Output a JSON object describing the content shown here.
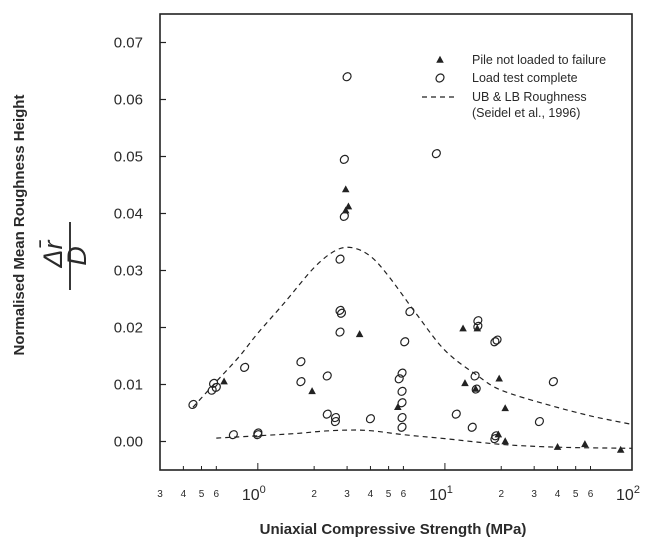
{
  "chart_data": {
    "type": "scatter",
    "title": "",
    "xlabel": "Uniaxial Compressive Strength (MPa)",
    "ylabel": "Normalised Mean Roughness Height",
    "ylabel_fraction": {
      "numerator": "Δr̄",
      "denominator": "D"
    },
    "x_scale": "log",
    "xlim": [
      0.3,
      100
    ],
    "ylim": [
      -0.005,
      0.075
    ],
    "y_ticks": [
      {
        "value": 0.0,
        "label": "0.00"
      },
      {
        "value": 0.01,
        "label": "0.01"
      },
      {
        "value": 0.02,
        "label": "0.02"
      },
      {
        "value": 0.03,
        "label": "0.03"
      },
      {
        "value": 0.04,
        "label": "0.04"
      },
      {
        "value": 0.05,
        "label": "0.05"
      },
      {
        "value": 0.06,
        "label": "0.06"
      },
      {
        "value": 0.07,
        "label": "0.07"
      }
    ],
    "x_ticks": [
      {
        "value": 0.3,
        "label": "3",
        "major": false
      },
      {
        "value": 0.4,
        "label": "4",
        "major": false
      },
      {
        "value": 0.5,
        "label": "5",
        "major": false
      },
      {
        "value": 0.6,
        "label": "6",
        "major": false
      },
      {
        "value": 1,
        "label": "10",
        "exp": "0",
        "major": true
      },
      {
        "value": 2,
        "label": "2",
        "major": false
      },
      {
        "value": 3,
        "label": "3",
        "major": false
      },
      {
        "value": 4,
        "label": "4",
        "major": false
      },
      {
        "value": 5,
        "label": "5",
        "major": false
      },
      {
        "value": 6,
        "label": "6",
        "major": false
      },
      {
        "value": 10,
        "label": "10",
        "exp": "1",
        "major": true
      },
      {
        "value": 20,
        "label": "2",
        "major": false
      },
      {
        "value": 30,
        "label": "3",
        "major": false
      },
      {
        "value": 40,
        "label": "4",
        "major": false
      },
      {
        "value": 50,
        "label": "5",
        "major": false
      },
      {
        "value": 60,
        "label": "6",
        "major": false
      },
      {
        "value": 100,
        "label": "10",
        "exp": "2",
        "major": true
      }
    ],
    "grid": false,
    "legend_position": "top-right",
    "series": [
      {
        "name": "Pile not loaded to failure",
        "marker": "triangle",
        "points": [
          [
            0.66,
            0.0105
          ],
          [
            1.95,
            0.0088
          ],
          [
            2.95,
            0.0442
          ],
          [
            2.95,
            0.0405
          ],
          [
            3.05,
            0.0412
          ],
          [
            3.5,
            0.0188
          ],
          [
            5.6,
            0.006
          ],
          [
            12.5,
            0.0198
          ],
          [
            12.8,
            0.0102
          ],
          [
            14.6,
            0.0092
          ],
          [
            14.9,
            0.0198
          ],
          [
            19.5,
            0.011
          ],
          [
            19.3,
            0.0012
          ],
          [
            21.0,
            0.0058
          ],
          [
            21.0,
            0.0
          ],
          [
            40.0,
            -0.001
          ],
          [
            56.0,
            -0.0005
          ],
          [
            87.0,
            -0.0015
          ]
        ]
      },
      {
        "name": "Load test complete",
        "marker": "circle",
        "points": [
          [
            0.45,
            0.0065
          ],
          [
            0.57,
            0.009
          ],
          [
            0.58,
            0.0102
          ],
          [
            0.6,
            0.0095
          ],
          [
            0.74,
            0.0012
          ],
          [
            0.85,
            0.013
          ],
          [
            1.0,
            0.0015
          ],
          [
            1.0,
            0.0012
          ],
          [
            1.7,
            0.014
          ],
          [
            1.7,
            0.0105
          ],
          [
            2.35,
            0.0115
          ],
          [
            2.35,
            0.0048
          ],
          [
            2.6,
            0.0035
          ],
          [
            2.6,
            0.0042
          ],
          [
            2.75,
            0.032
          ],
          [
            2.75,
            0.023
          ],
          [
            2.75,
            0.0192
          ],
          [
            2.8,
            0.0225
          ],
          [
            2.9,
            0.0395
          ],
          [
            2.9,
            0.0495
          ],
          [
            3.0,
            0.064
          ],
          [
            4.0,
            0.004
          ],
          [
            5.7,
            0.011
          ],
          [
            5.9,
            0.012
          ],
          [
            5.9,
            0.0088
          ],
          [
            5.9,
            0.0068
          ],
          [
            5.9,
            0.0042
          ],
          [
            5.9,
            0.0025
          ],
          [
            6.1,
            0.0175
          ],
          [
            6.5,
            0.0228
          ],
          [
            9.0,
            0.0505
          ],
          [
            11.5,
            0.0048
          ],
          [
            14.0,
            0.0025
          ],
          [
            14.5,
            0.0115
          ],
          [
            14.7,
            0.0092
          ],
          [
            15.0,
            0.0212
          ],
          [
            15.0,
            0.0202
          ],
          [
            18.5,
            0.0175
          ],
          [
            18.5,
            0.0005
          ],
          [
            18.7,
            0.001
          ],
          [
            19.0,
            0.0178
          ],
          [
            32.0,
            0.0035
          ],
          [
            38.0,
            0.0105
          ]
        ]
      }
    ],
    "lines": [
      {
        "name": "UB & LB Roughness",
        "name_line2": "(Seidel et al., 1996)",
        "style": "dashed",
        "upper": [
          [
            0.45,
            0.006
          ],
          [
            0.6,
            0.0105
          ],
          [
            0.8,
            0.015
          ],
          [
            1.0,
            0.019
          ],
          [
            1.4,
            0.0245
          ],
          [
            2.0,
            0.0305
          ],
          [
            2.6,
            0.0335
          ],
          [
            3.2,
            0.034
          ],
          [
            4.0,
            0.0325
          ],
          [
            5.0,
            0.029
          ],
          [
            7.0,
            0.0225
          ],
          [
            10.0,
            0.016
          ],
          [
            15.0,
            0.0115
          ],
          [
            20.0,
            0.009
          ],
          [
            35.0,
            0.0065
          ],
          [
            60.0,
            0.0045
          ],
          [
            100.0,
            0.003
          ]
        ],
        "lower": [
          [
            0.6,
            0.0006
          ],
          [
            1.0,
            0.001
          ],
          [
            1.6,
            0.0014
          ],
          [
            2.2,
            0.0018
          ],
          [
            3.0,
            0.002
          ],
          [
            4.0,
            0.0019
          ],
          [
            6.0,
            0.0012
          ],
          [
            10.0,
            0.0005
          ],
          [
            20.0,
            -0.0005
          ],
          [
            40.0,
            -0.001
          ],
          [
            100.0,
            -0.0012
          ]
        ]
      }
    ]
  }
}
